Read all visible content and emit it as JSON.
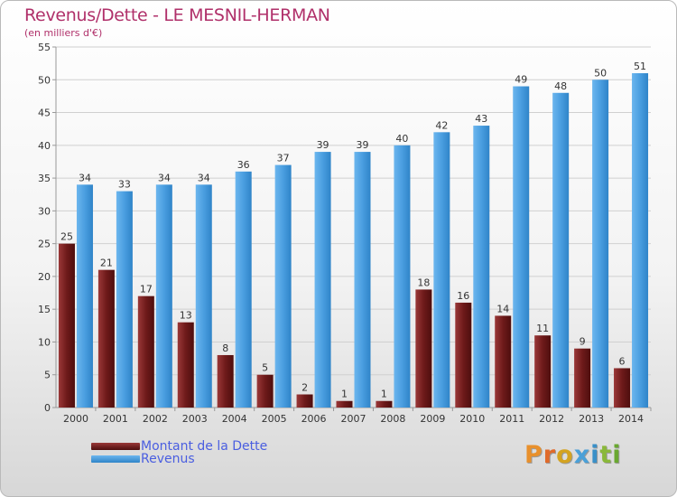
{
  "header": {
    "title": "Revenus/Dette - LE MESNIL-HERMAN",
    "subtitle": "(en milliers d'€)"
  },
  "legend": [
    {
      "label": "Montant de la Dette",
      "color": "#6e1a1a"
    },
    {
      "label": "Revenus",
      "color": "#4a9ee0"
    }
  ],
  "logo": "Proxiti",
  "chart_data": {
    "type": "bar",
    "title": "Revenus/Dette - LE MESNIL-HERMAN",
    "ylabel": "(en milliers d'€)",
    "categories": [
      "2000",
      "2001",
      "2002",
      "2003",
      "2004",
      "2005",
      "2006",
      "2007",
      "2008",
      "2009",
      "2010",
      "2011",
      "2012",
      "2013",
      "2014"
    ],
    "series": [
      {
        "name": "Montant de la Dette",
        "color": "#6e1a1a",
        "values": [
          25,
          21,
          17,
          13,
          8,
          5,
          2,
          1,
          1,
          18,
          16,
          14,
          11,
          9,
          6
        ]
      },
      {
        "name": "Revenus",
        "color": "#4a9ee0",
        "values": [
          34,
          33,
          34,
          34,
          36,
          37,
          39,
          39,
          40,
          42,
          43,
          49,
          48,
          50,
          51
        ]
      }
    ],
    "ylim": [
      0,
      55
    ],
    "yticks": [
      0,
      5,
      10,
      15,
      20,
      25,
      30,
      35,
      40,
      45,
      50,
      55
    ],
    "grid": true,
    "legend_position": "bottom-left"
  }
}
